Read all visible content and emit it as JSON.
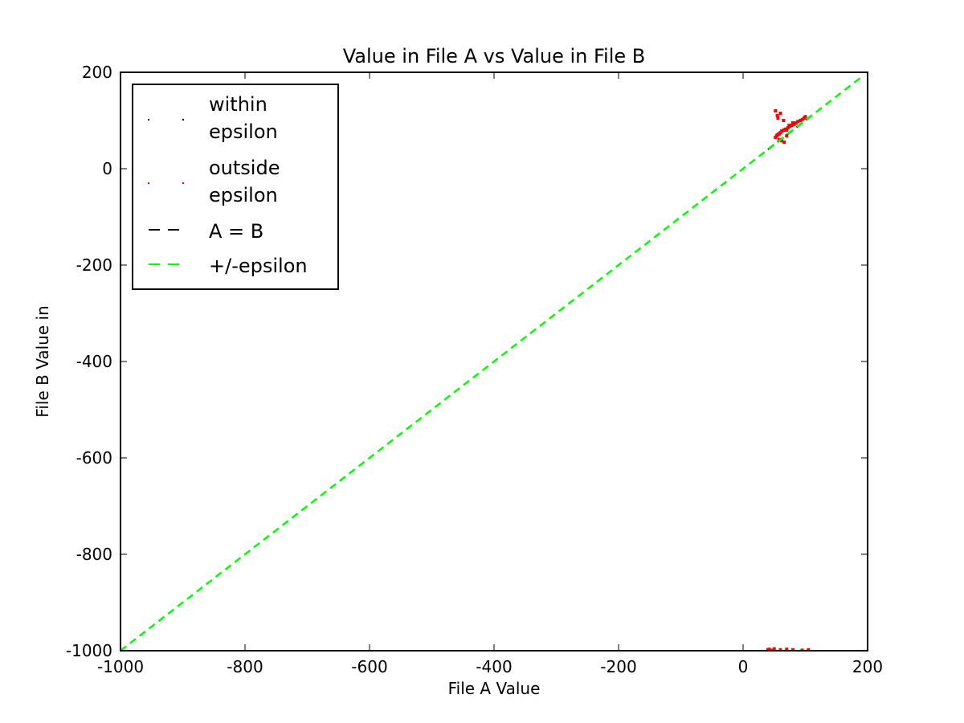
{
  "chart_data": {
    "type": "scatter",
    "title": "Value in File A vs Value in File B",
    "xlabel": "File A Value",
    "ylabel": "File B Value in",
    "xlim": [
      -1000,
      200
    ],
    "ylim": [
      -1000,
      200
    ],
    "xticks": [
      -1000,
      -800,
      -600,
      -400,
      -200,
      0,
      200
    ],
    "yticks": [
      -1000,
      -800,
      -600,
      -400,
      -200,
      0,
      200
    ],
    "xtick_labels": [
      "-1000",
      "-800",
      "-600",
      "-400",
      "-200",
      "0",
      "200"
    ],
    "ytick_labels": [
      "-1000",
      "-800",
      "-600",
      "-400",
      "-200",
      "0",
      "200"
    ],
    "grid": false,
    "legend_position": "top-left",
    "legend": [
      {
        "label_lines": [
          "within",
          "epsilon"
        ],
        "style": "points",
        "color": "#000000"
      },
      {
        "label_lines": [
          "outside",
          "epsilon"
        ],
        "style": "points",
        "color": "#ff0000"
      },
      {
        "label_lines": [
          "A = B"
        ],
        "style": "dashed",
        "color": "#000000"
      },
      {
        "label_lines": [
          "+/-epsilon"
        ],
        "style": "dashed",
        "color": "#00ff00"
      }
    ],
    "series": [
      {
        "name": "within epsilon",
        "color": "#000000",
        "x": [],
        "y": []
      },
      {
        "name": "outside epsilon",
        "color": "#ff0000",
        "x": [
          55,
          57,
          60,
          62,
          65,
          68,
          72,
          75,
          78,
          82,
          85,
          88,
          92,
          95,
          98,
          100,
          52,
          54,
          58,
          70,
          74,
          80,
          40,
          42,
          45,
          50,
          60,
          70,
          80,
          95,
          105,
          55,
          60,
          65,
          70,
          58,
          62,
          66,
          52,
          56
        ],
        "y": [
          70,
          72,
          75,
          78,
          80,
          82,
          85,
          88,
          90,
          92,
          95,
          98,
          100,
          102,
          105,
          108,
          65,
          68,
          72,
          80,
          90,
          95,
          -998,
          -997,
          -999,
          -996,
          -998,
          -997,
          -998,
          -999,
          -998,
          110,
          115,
          100,
          68,
          60,
          58,
          55,
          120,
          105
        ]
      },
      {
        "name": "A = B",
        "color": "#000000",
        "x": [
          40,
          110
        ],
        "y": [
          40,
          110
        ]
      },
      {
        "name": "+/-epsilon",
        "color": "#00ff00",
        "x": [
          -1000,
          190
        ],
        "y": [
          -1000,
          190
        ]
      }
    ]
  }
}
